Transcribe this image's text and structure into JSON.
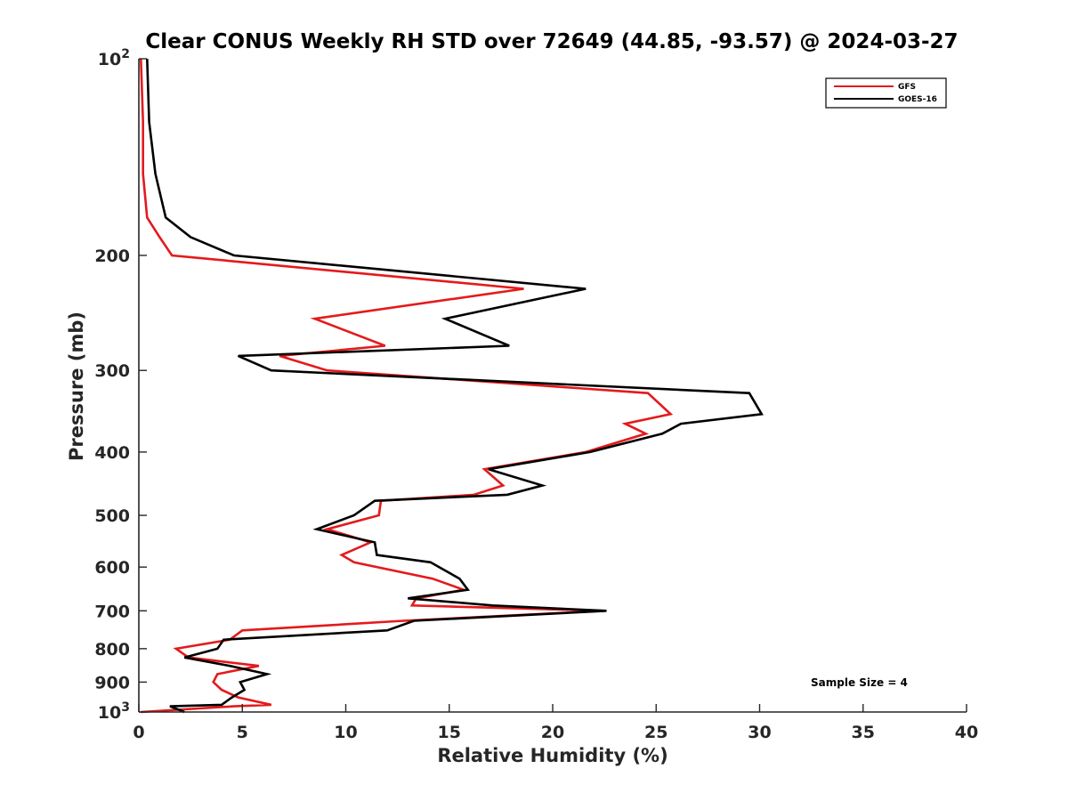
{
  "chart_data": {
    "type": "line",
    "title": "Clear CONUS Weekly RH STD over 72649 (44.85, -93.57) @ 2024-03-27",
    "xlabel": "Relative Humidity (%)",
    "ylabel": "Pressure (mb)",
    "xlim": [
      0,
      40
    ],
    "ylim": [
      100,
      1000
    ],
    "y_scale": "log",
    "y_reversed": true,
    "grid": false,
    "legend_position": "top-right",
    "x_ticks": [
      "0",
      "5",
      "10",
      "15",
      "20",
      "25",
      "30",
      "35",
      "40"
    ],
    "y_ticks": [
      {
        "value": 100,
        "base": "10",
        "exp": "2"
      },
      {
        "value": 200,
        "label": "200"
      },
      {
        "value": 300,
        "label": "300"
      },
      {
        "value": 400,
        "label": "400"
      },
      {
        "value": 500,
        "label": "500"
      },
      {
        "value": 600,
        "label": "600"
      },
      {
        "value": 700,
        "label": "700"
      },
      {
        "value": 800,
        "label": "800"
      },
      {
        "value": 900,
        "label": "900"
      },
      {
        "value": 1000,
        "base": "10",
        "exp": "3"
      }
    ],
    "series": [
      {
        "name": "GFS",
        "color": "#e41a1c",
        "points": [
          [
            0.1,
            100
          ],
          [
            0.2,
            125
          ],
          [
            0.2,
            150
          ],
          [
            0.4,
            175
          ],
          [
            1.0,
            187.5
          ],
          [
            1.6,
            200
          ],
          [
            18.6,
            225
          ],
          [
            8.5,
            250
          ],
          [
            11.9,
            275
          ],
          [
            6.8,
            285
          ],
          [
            9.1,
            300
          ],
          [
            24.6,
            325
          ],
          [
            25.7,
            350
          ],
          [
            23.5,
            362
          ],
          [
            24.5,
            375
          ],
          [
            21.6,
            400
          ],
          [
            16.7,
            425
          ],
          [
            17.6,
            450
          ],
          [
            16.2,
            465
          ],
          [
            11.7,
            475
          ],
          [
            11.6,
            500
          ],
          [
            9.1,
            525
          ],
          [
            11.2,
            550
          ],
          [
            9.8,
            575
          ],
          [
            10.4,
            590
          ],
          [
            14.2,
            625
          ],
          [
            15.7,
            650
          ],
          [
            13.4,
            670
          ],
          [
            13.2,
            687
          ],
          [
            22.5,
            700
          ],
          [
            12.8,
            725
          ],
          [
            5.0,
            750
          ],
          [
            4.4,
            775
          ],
          [
            1.8,
            800
          ],
          [
            2.4,
            825
          ],
          [
            5.8,
            850
          ],
          [
            3.8,
            875
          ],
          [
            3.6,
            900
          ],
          [
            4.0,
            925
          ],
          [
            4.8,
            950
          ],
          [
            6.4,
            975
          ],
          [
            4.6,
            980
          ],
          [
            0.1,
            1000
          ]
        ]
      },
      {
        "name": "GOES-16",
        "color": "#000000",
        "points": [
          [
            0.4,
            100
          ],
          [
            0.5,
            125
          ],
          [
            0.8,
            150
          ],
          [
            1.3,
            175
          ],
          [
            2.5,
            187.5
          ],
          [
            4.6,
            200
          ],
          [
            21.6,
            225
          ],
          [
            14.8,
            250
          ],
          [
            17.9,
            275
          ],
          [
            4.8,
            285
          ],
          [
            6.4,
            300
          ],
          [
            29.5,
            325
          ],
          [
            30.1,
            350
          ],
          [
            26.2,
            362
          ],
          [
            25.3,
            375
          ],
          [
            21.8,
            400
          ],
          [
            16.9,
            425
          ],
          [
            19.5,
            450
          ],
          [
            17.8,
            465
          ],
          [
            11.4,
            475
          ],
          [
            10.4,
            500
          ],
          [
            8.6,
            525
          ],
          [
            11.4,
            550
          ],
          [
            11.5,
            575
          ],
          [
            14.1,
            590
          ],
          [
            15.5,
            625
          ],
          [
            15.9,
            650
          ],
          [
            13.0,
            670
          ],
          [
            17.1,
            687
          ],
          [
            22.6,
            700
          ],
          [
            13.3,
            725
          ],
          [
            12.0,
            750
          ],
          [
            4.1,
            775
          ],
          [
            3.8,
            800
          ],
          [
            2.2,
            825
          ],
          [
            4.4,
            850
          ],
          [
            6.2,
            875
          ],
          [
            4.9,
            900
          ],
          [
            5.1,
            925
          ],
          [
            4.5,
            950
          ],
          [
            4.0,
            975
          ],
          [
            1.5,
            980
          ],
          [
            2.2,
            1000
          ]
        ]
      }
    ],
    "annotations": [
      "Sample Size = 4"
    ]
  }
}
